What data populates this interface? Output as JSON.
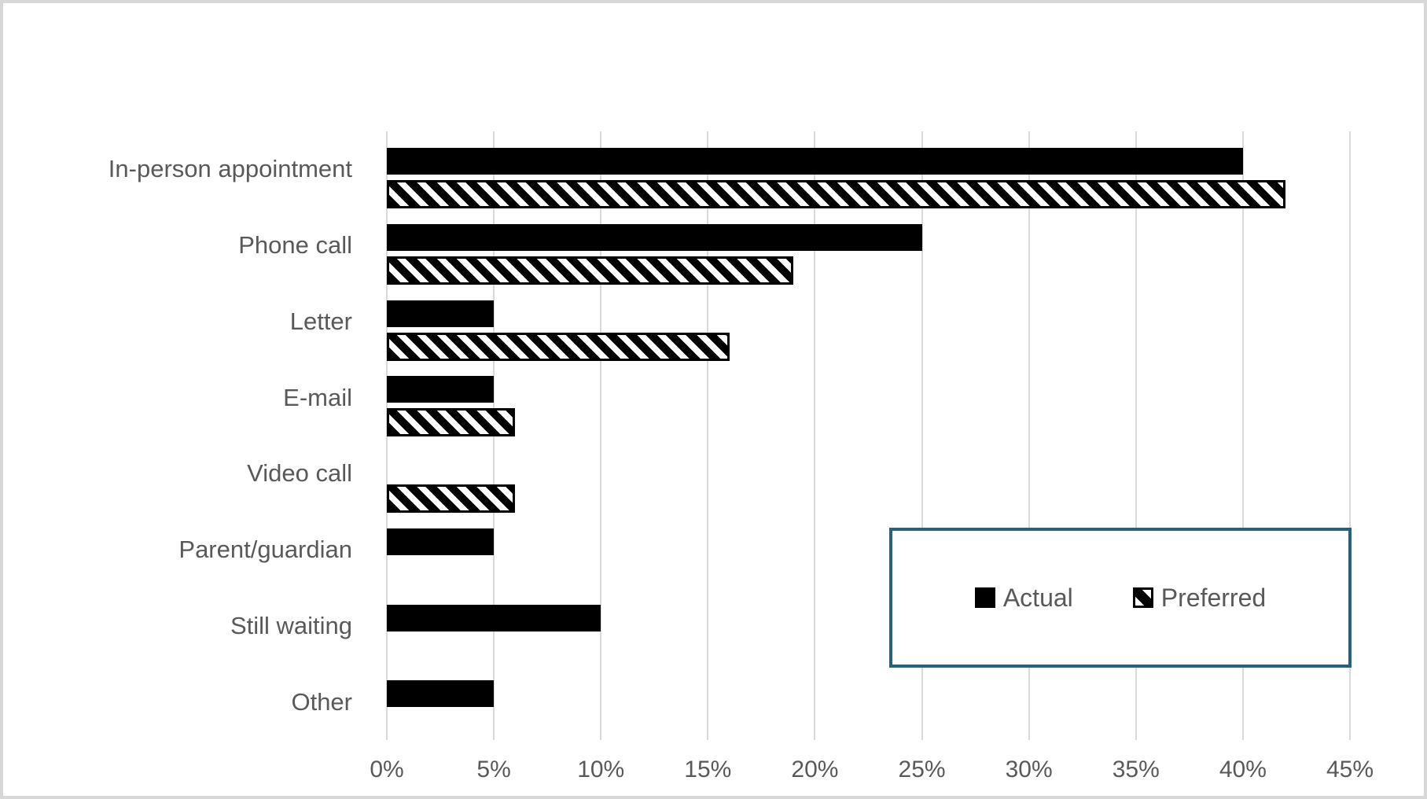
{
  "colors": {
    "background": "#FFFFFF",
    "outer_border": "#D7D7D7",
    "gridline": "#D9D9D9",
    "text": "#595959",
    "bar_fill": "#000000",
    "legend_border": "#27617E"
  },
  "chart_data": {
    "type": "bar",
    "orientation": "horizontal",
    "title": "",
    "xlabel": "",
    "ylabel": "",
    "categories": [
      "In-person appointment",
      "Phone call",
      "Letter",
      "E-mail",
      "Video call",
      "Parent/guardian",
      "Still waiting",
      "Other"
    ],
    "series": [
      {
        "name": "Actual",
        "pattern": "solid-black",
        "values": [
          40,
          25,
          5,
          5,
          0,
          5,
          10,
          5
        ]
      },
      {
        "name": "Preferred",
        "pattern": "diagonal-hatch",
        "values": [
          42,
          19,
          16,
          6,
          6,
          0,
          0,
          0
        ]
      }
    ],
    "x_axis": {
      "min": 0,
      "max": 45,
      "tick_step": 5,
      "tick_labels": [
        "0%",
        "5%",
        "10%",
        "15%",
        "20%",
        "25%",
        "30%",
        "35%",
        "40%",
        "45%"
      ],
      "unit": "percent"
    },
    "grid": "vertical-only",
    "legend": {
      "position": "inside-lower-right",
      "entries": [
        "Actual",
        "Preferred"
      ]
    }
  }
}
